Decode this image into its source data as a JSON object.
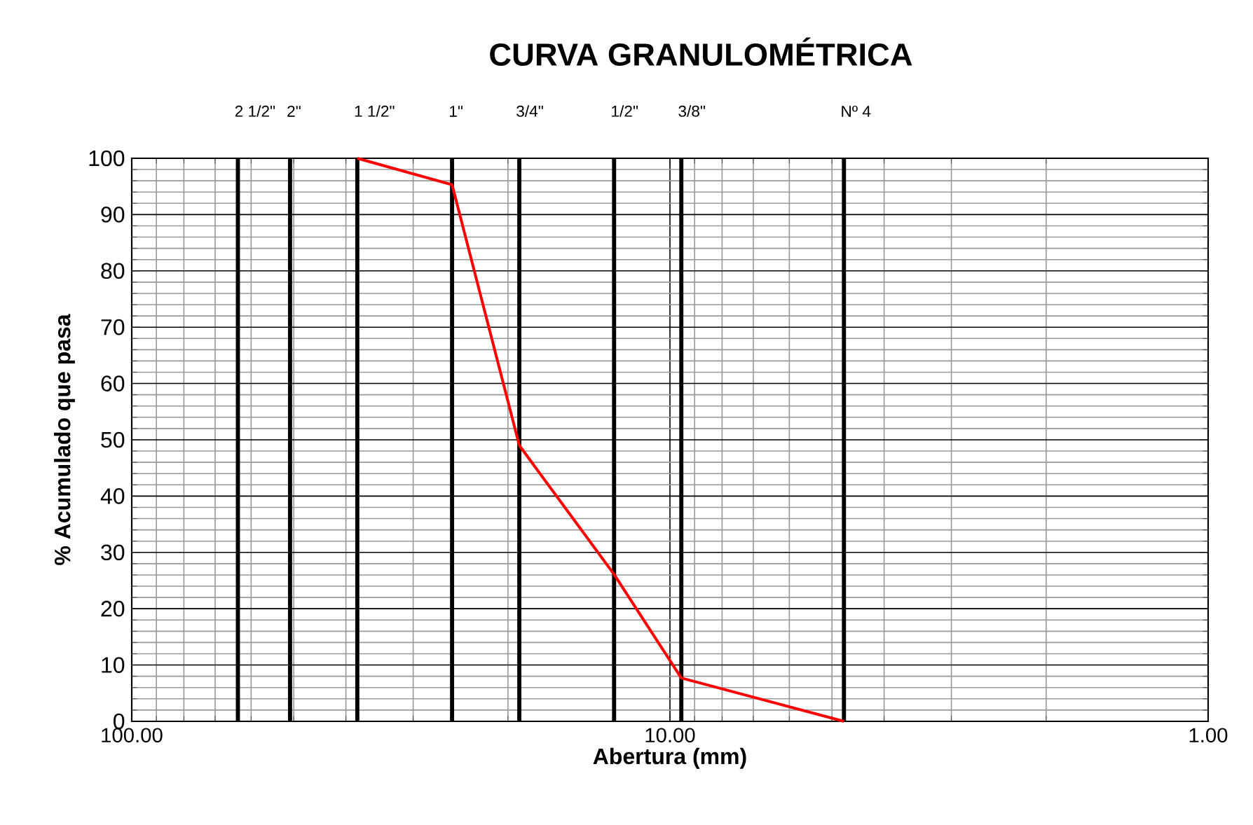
{
  "chart_data": {
    "type": "line",
    "title": "CURVA GRANULOMÉTRICA",
    "xlabel": "Abertura (mm)",
    "ylabel": "% Acumulado que pasa",
    "log": "x",
    "grid": true,
    "marker": "none",
    "line_style": "solid",
    "xlim": [
      100,
      1
    ],
    "ylim": [
      0,
      100
    ],
    "xticks": [
      {
        "value": 100,
        "label": "100.00"
      },
      {
        "value": 10,
        "label": "10.00"
      },
      {
        "value": 1,
        "label": "1.00"
      }
    ],
    "yticks": [
      0,
      10,
      20,
      30,
      40,
      50,
      60,
      70,
      80,
      90,
      100
    ],
    "series": [
      {
        "color": "#ff0000",
        "x": [
          38.1,
          25.4,
          19.05,
          12.7,
          9.525,
          4.75
        ],
        "values": [
          100,
          95.3,
          49,
          26.1,
          7.7,
          0
        ]
      }
    ],
    "ref_lines": [
      {
        "axis": "x",
        "value": 63.5,
        "color": "#000000"
      },
      {
        "axis": "x",
        "value": 50.8,
        "color": "#000000"
      },
      {
        "axis": "x",
        "value": 38.1,
        "color": "#000000"
      },
      {
        "axis": "x",
        "value": 25.4,
        "color": "#000000"
      },
      {
        "axis": "x",
        "value": 19.05,
        "color": "#000000"
      },
      {
        "axis": "x",
        "value": 12.7,
        "color": "#000000"
      },
      {
        "axis": "x",
        "value": 9.525,
        "color": "#000000"
      },
      {
        "axis": "x",
        "value": 4.75,
        "color": "#000000"
      }
    ],
    "annotations": [
      {
        "text": "2 1/2\"",
        "x": 63.5,
        "y": 100
      },
      {
        "text": "2\"",
        "x": 50.8,
        "y": 100
      },
      {
        "text": "1 1/2\"",
        "x": 38.1,
        "y": 100
      },
      {
        "text": "1\"",
        "x": 25.4,
        "y": 100
      },
      {
        "text": "3/4\"",
        "x": 19.05,
        "y": 100
      },
      {
        "text": "1/2\"",
        "x": 12.7,
        "y": 100
      },
      {
        "text": "3/8\"",
        "x": 9.525,
        "y": 100
      },
      {
        "text": "Nº 4",
        "x": 4.75,
        "y": 100
      }
    ]
  }
}
